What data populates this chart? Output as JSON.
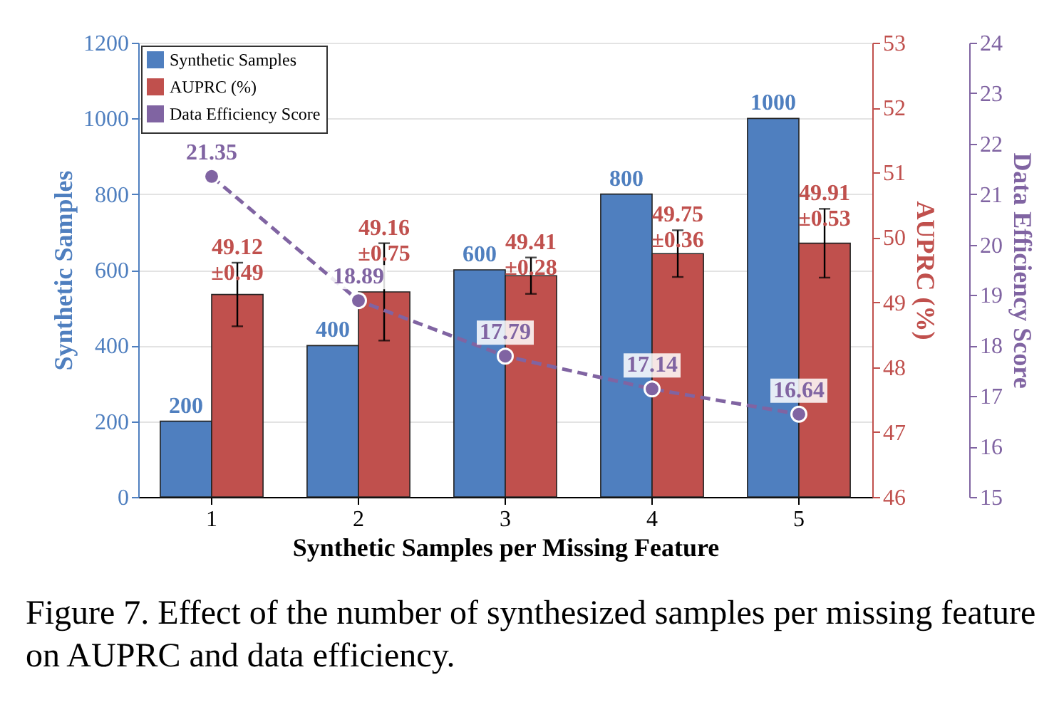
{
  "chart_data": {
    "type": "bar",
    "categories": [
      "1",
      "2",
      "3",
      "4",
      "5"
    ],
    "xlabel": "Synthetic Samples per Missing Feature",
    "ylabel": "Synthetic Samples",
    "y2label": "AUPRC (%)",
    "y3label": "Data Efficiency Score",
    "ylim": [
      0,
      1200
    ],
    "yticks": [
      0,
      200,
      400,
      600,
      800,
      1000,
      1200
    ],
    "y2lim": [
      46,
      53
    ],
    "y2ticks": [
      46,
      47,
      48,
      49,
      50,
      51,
      52,
      53
    ],
    "y3lim": [
      15,
      24
    ],
    "y3ticks": [
      15,
      16,
      17,
      18,
      19,
      20,
      21,
      22,
      23,
      24
    ],
    "series": [
      {
        "name": "Synthetic Samples",
        "color": "#4f7fbf",
        "values": [
          200,
          400,
          600,
          800,
          1000
        ],
        "value_labels": [
          "200",
          "400",
          "600",
          "800",
          "1000"
        ]
      },
      {
        "name": "AUPRC (%)",
        "axis": "y2",
        "color": "#c0504d",
        "values": [
          49.12,
          49.16,
          49.41,
          49.75,
          49.91
        ],
        "errors": [
          0.49,
          0.75,
          0.28,
          0.36,
          0.53
        ],
        "value_labels": [
          "49.12\n±0.49",
          "49.16\n±0.75",
          "49.41\n±0.28",
          "49.75\n±0.36",
          "49.91\n±0.53"
        ]
      },
      {
        "name": "Data Efficiency Score",
        "type": "line",
        "axis": "y3",
        "color": "#8064a2",
        "marker": "circle",
        "line_style": "dashed",
        "values": [
          21.35,
          18.89,
          17.79,
          17.14,
          16.64
        ],
        "value_labels": [
          "21.35",
          "18.89",
          "17.79",
          "17.14",
          "16.64"
        ]
      }
    ],
    "grid": "y",
    "legend": "top left",
    "annotations": [
      "Figure 7. Effect of the number of synthesized samples per missing feature on AUPRC and data efficiency."
    ]
  }
}
